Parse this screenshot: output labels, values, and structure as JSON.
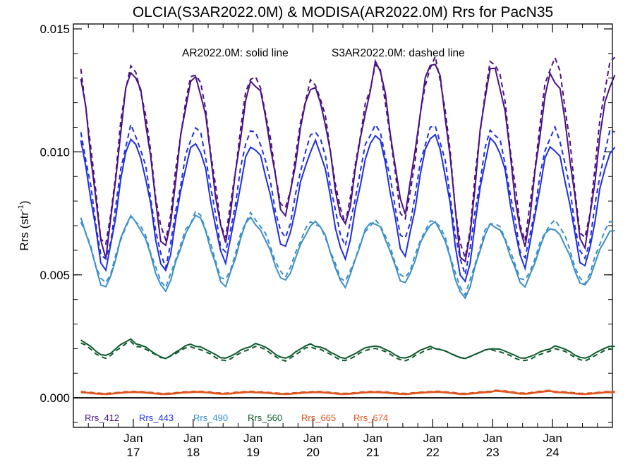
{
  "chart_data": {
    "type": "line",
    "title": "OLCIA(S3AR2022.0M) & MODISA(AR2022.0M)  Rrs for PacN35",
    "annotation": {
      "solid": "AR2022.0M: solid line",
      "dashed": "S3AR2022.0M: dashed line"
    },
    "ylabel": {
      "main": "Rrs (str",
      "sup": "-1",
      "close": ")"
    },
    "ylim": [
      -0.0012,
      0.0152
    ],
    "xlim": [
      2016.0,
      2025.0
    ],
    "yticks": [
      {
        "value": 0.0,
        "label": "0.000"
      },
      {
        "value": 0.005,
        "label": "0.005"
      },
      {
        "value": 0.01,
        "label": "0.010"
      },
      {
        "value": 0.015,
        "label": "0.015"
      }
    ],
    "xticks": [
      {
        "value": 2017,
        "line1": "Jan",
        "line2": "17"
      },
      {
        "value": 2018,
        "line1": "Jan",
        "line2": "18"
      },
      {
        "value": 2019,
        "line1": "Jan",
        "line2": "19"
      },
      {
        "value": 2020,
        "line1": "Jan",
        "line2": "20"
      },
      {
        "value": 2021,
        "line1": "Jan",
        "line2": "21"
      },
      {
        "value": 2022,
        "line1": "Jan",
        "line2": "22"
      },
      {
        "value": 2023,
        "line1": "Jan",
        "line2": "23"
      },
      {
        "value": 2024,
        "line1": "Jan",
        "line2": "24"
      }
    ],
    "grid": false,
    "legend_position": "bottom-left",
    "zero_line": true,
    "years": [
      2016,
      2017,
      2018,
      2019,
      2020,
      2021,
      2022,
      2023,
      2024
    ],
    "series": [
      {
        "name": "Rrs_412",
        "color": "#4b1184",
        "solid_peaks": [
          0.0136,
          0.013,
          0.013,
          0.0128,
          0.0125,
          0.0138,
          0.0136,
          0.0133,
          0.013
        ],
        "solid_troughs": [
          0.0057,
          0.0059,
          0.0063,
          0.0073,
          0.0069,
          0.0075,
          0.0052,
          0.0061,
          0.006
        ],
        "dashed_peaks": [
          0.0138,
          0.0131,
          0.0133,
          0.013,
          0.0127,
          0.0137,
          0.0137,
          0.0137,
          0.0138
        ],
        "dashed_troughs": [
          0.006,
          0.0063,
          0.0065,
          0.0075,
          0.0071,
          0.0071,
          0.0055,
          0.0064,
          0.0062
        ]
      },
      {
        "name": "Rrs_443",
        "color": "#1f2fe0",
        "solid_peaks": [
          0.0108,
          0.0102,
          0.0104,
          0.0101,
          0.0104,
          0.0108,
          0.0106,
          0.0104,
          0.0101
        ],
        "solid_troughs": [
          0.0051,
          0.005,
          0.0055,
          0.006,
          0.0056,
          0.0057,
          0.0045,
          0.0053,
          0.0052
        ],
        "dashed_peaks": [
          0.0112,
          0.0106,
          0.0111,
          0.0107,
          0.0109,
          0.0111,
          0.011,
          0.0108,
          0.0109
        ],
        "dashed_troughs": [
          0.0054,
          0.0053,
          0.0058,
          0.0064,
          0.0062,
          0.0063,
          0.005,
          0.0056,
          0.0055
        ]
      },
      {
        "name": "Rrs_490",
        "color": "#3b8fc8",
        "solid_peaks": [
          0.0075,
          0.0071,
          0.0075,
          0.007,
          0.0072,
          0.0071,
          0.0071,
          0.007,
          0.0068
        ],
        "solid_troughs": [
          0.0044,
          0.0043,
          0.0045,
          0.0047,
          0.0045,
          0.0046,
          0.004,
          0.0045,
          0.0045
        ],
        "dashed_peaks": [
          0.0074,
          0.0072,
          0.0076,
          0.0072,
          0.0071,
          0.0072,
          0.0072,
          0.0071,
          0.0072
        ],
        "dashed_troughs": [
          0.0046,
          0.0045,
          0.0047,
          0.0049,
          0.0047,
          0.0048,
          0.0042,
          0.0047,
          0.0046
        ]
      },
      {
        "name": "Rrs_560",
        "color": "#0f5a2c",
        "solid_peaks": [
          0.0024,
          0.0022,
          0.0021,
          0.0022,
          0.0021,
          0.0021,
          0.002,
          0.002,
          0.0021
        ],
        "solid_troughs": [
          0.0017,
          0.0016,
          0.0016,
          0.0016,
          0.0016,
          0.0016,
          0.0016,
          0.0016,
          0.0016
        ],
        "dashed_peaks": [
          0.0023,
          0.0021,
          0.002,
          0.0021,
          0.002,
          0.002,
          0.002,
          0.0019,
          0.002
        ],
        "dashed_troughs": [
          0.0016,
          0.0016,
          0.0015,
          0.0015,
          0.0015,
          0.0015,
          0.0016,
          0.0015,
          0.0015
        ]
      },
      {
        "name": "Rrs_665",
        "color": "#d9511a",
        "solid_peaks": [
          0.00024,
          0.00024,
          0.00025,
          0.00023,
          0.00024,
          0.00024,
          0.00025,
          0.00029,
          0.00024
        ],
        "solid_troughs": [
          0.00016,
          0.00016,
          0.00017,
          0.00016,
          0.00016,
          0.00016,
          0.00016,
          0.00017,
          0.00016
        ],
        "dashed_peaks": [
          0.00026,
          0.00026,
          0.00027,
          0.00025,
          0.00026,
          0.00026,
          0.00027,
          0.00031,
          0.00026
        ],
        "dashed_troughs": [
          0.00018,
          0.00018,
          0.00019,
          0.00018,
          0.00018,
          0.00018,
          0.00018,
          0.00019,
          0.00018
        ]
      },
      {
        "name": "Rrs_674",
        "color": "#e0561e",
        "solid_peaks": [
          0.00022,
          0.00022,
          0.00023,
          0.00021,
          0.00022,
          0.00022,
          0.00023,
          0.00027,
          0.00022
        ],
        "solid_troughs": [
          0.00014,
          0.00014,
          0.00015,
          0.00014,
          0.00014,
          0.00014,
          0.00014,
          0.00015,
          0.00014
        ],
        "dashed_peaks": [
          0.00024,
          0.00024,
          0.00025,
          0.00023,
          0.00024,
          0.00024,
          0.00025,
          0.00029,
          0.00024
        ],
        "dashed_troughs": [
          0.00016,
          0.00016,
          0.00017,
          0.00016,
          0.00016,
          0.00016,
          0.00016,
          0.00017,
          0.00016
        ]
      }
    ]
  }
}
